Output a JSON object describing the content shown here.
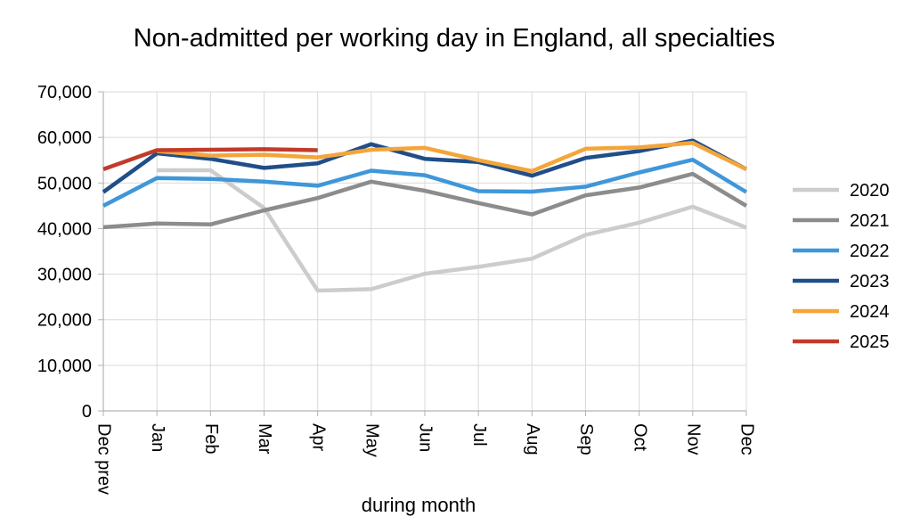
{
  "chart_data": {
    "type": "line",
    "title": "Non-admitted per working day in England, all specialties",
    "xlabel": "during month",
    "ylabel": "",
    "categories": [
      "Dec prev",
      "Jan",
      "Feb",
      "Mar",
      "Apr",
      "May",
      "Jun",
      "Jul",
      "Aug",
      "Sep",
      "Oct",
      "Nov",
      "Dec"
    ],
    "ylim": [
      0,
      70000
    ],
    "yticks": [
      0,
      10000,
      20000,
      30000,
      40000,
      50000,
      60000,
      70000
    ],
    "ytick_labels": [
      "0",
      "10,000",
      "20,000",
      "30,000",
      "40,000",
      "50,000",
      "60,000",
      "70,000"
    ],
    "grid": true,
    "legend_position": "right",
    "series": [
      {
        "name": "2020",
        "color": "#cccccc",
        "values": [
          null,
          52800,
          52800,
          44500,
          26400,
          26700,
          30100,
          31600,
          33400,
          38600,
          41300,
          44800,
          40200
        ]
      },
      {
        "name": "2021",
        "color": "#8c8c8c",
        "values": [
          40300,
          41100,
          40900,
          44000,
          46700,
          50300,
          48300,
          45600,
          43100,
          47300,
          49000,
          52000,
          45000
        ]
      },
      {
        "name": "2022",
        "color": "#3f97d9",
        "values": [
          45000,
          51100,
          50900,
          50300,
          49400,
          52700,
          51700,
          48200,
          48100,
          49200,
          52300,
          55100,
          48000
        ]
      },
      {
        "name": "2023",
        "color": "#1f4e89",
        "values": [
          48000,
          56500,
          55300,
          53300,
          54300,
          58500,
          55300,
          54600,
          51600,
          55500,
          57000,
          59300,
          53000
        ]
      },
      {
        "name": "2024",
        "color": "#f4a53a",
        "values": [
          null,
          57000,
          56000,
          56200,
          55600,
          57300,
          57700,
          55000,
          52600,
          57500,
          57800,
          58800,
          53000
        ]
      },
      {
        "name": "2025",
        "color": "#c23b2a",
        "values": [
          53000,
          57200,
          57300,
          57400,
          57200,
          null,
          null,
          null,
          null,
          null,
          null,
          null,
          null
        ]
      }
    ]
  }
}
